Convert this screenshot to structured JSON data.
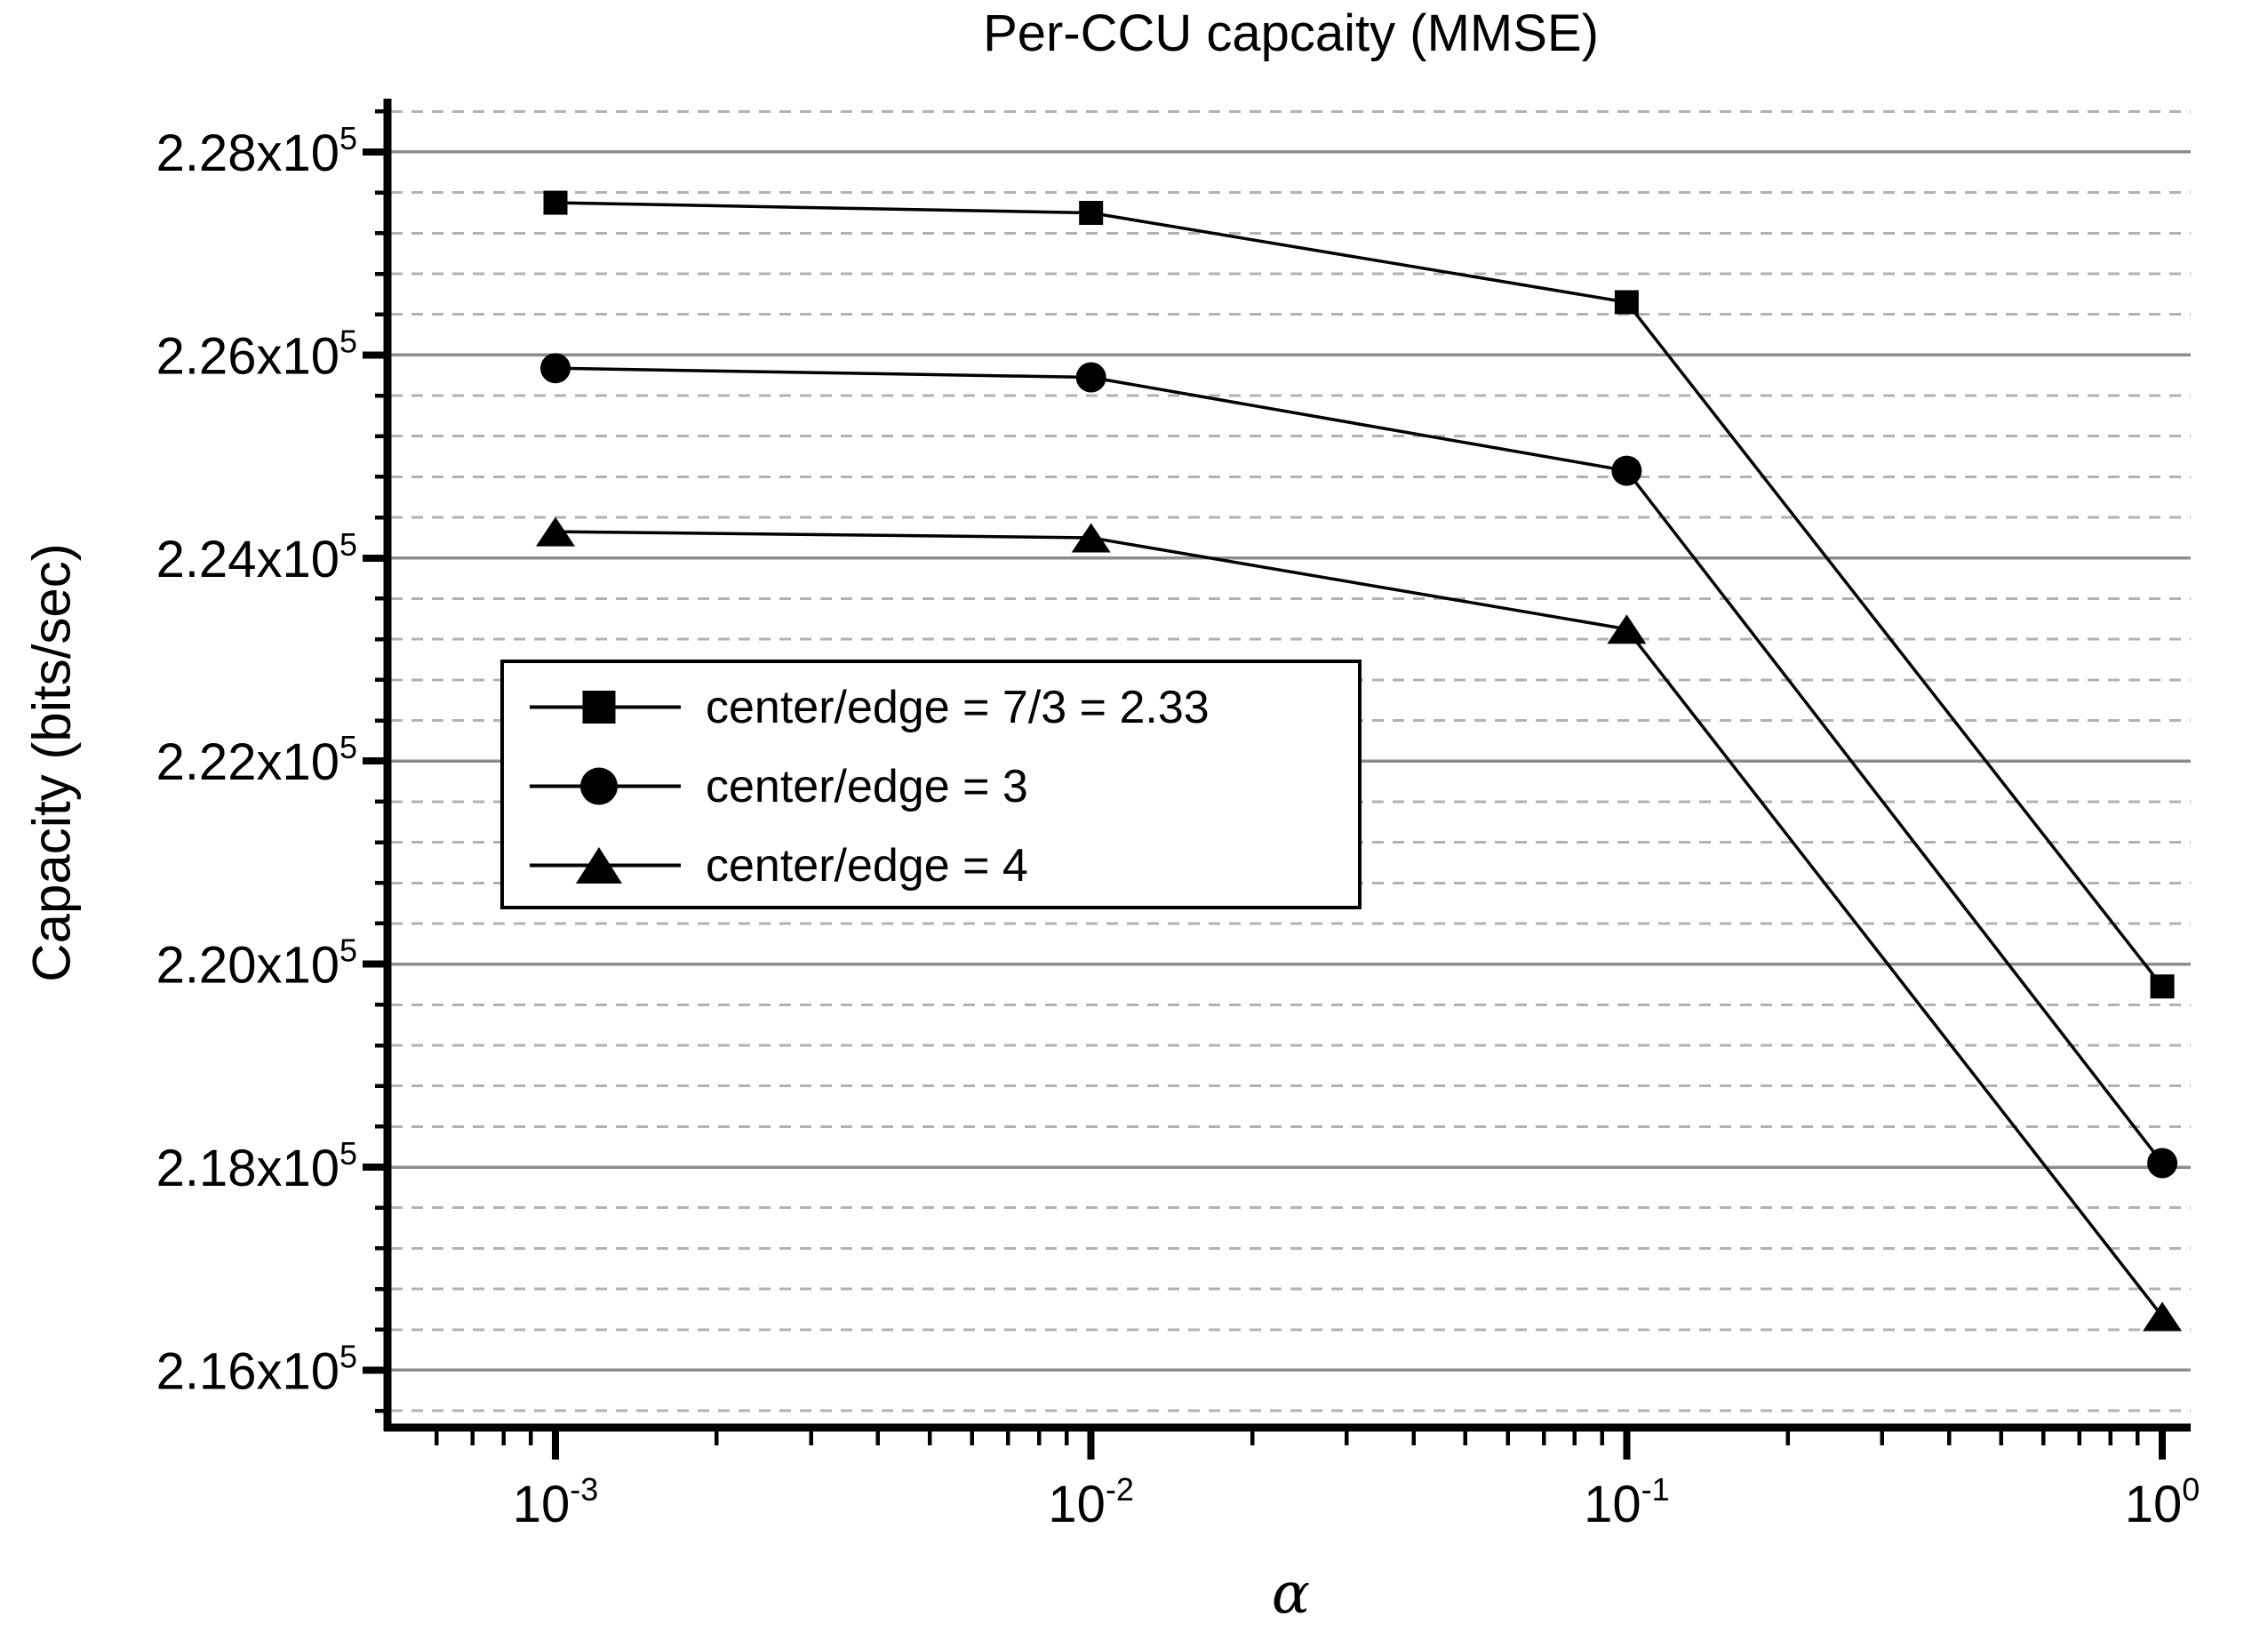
{
  "title": "Per-CCU capcaity (MMSE)",
  "axes": {
    "y_label": "Capacity (bits/sec)",
    "x_label": "α",
    "y_range": [
      215470,
      228490
    ],
    "x_log_range": [
      -3.307,
      0.053
    ],
    "y_minor_step": 400,
    "y_ticks": [
      {
        "value": 216000,
        "text": "2.16x10",
        "sup": "5"
      },
      {
        "value": 218000,
        "text": "2.18x10",
        "sup": "5"
      },
      {
        "value": 220000,
        "text": "2.20x10",
        "sup": "5"
      },
      {
        "value": 222000,
        "text": "2.22x10",
        "sup": "5"
      },
      {
        "value": 224000,
        "text": "2.24x10",
        "sup": "5"
      },
      {
        "value": 226000,
        "text": "2.26x10",
        "sup": "5"
      },
      {
        "value": 228000,
        "text": "2.28x10",
        "sup": "5"
      }
    ],
    "x_ticks": [
      {
        "value": 0.001,
        "text": "10",
        "sup": "-3"
      },
      {
        "value": 0.01,
        "text": "10",
        "sup": "-2"
      },
      {
        "value": 0.1,
        "text": "10",
        "sup": "-1"
      },
      {
        "value": 1,
        "text": "10",
        "sup": "0"
      }
    ]
  },
  "legend": {
    "entries": [
      {
        "marker": "square",
        "label": "center/edge = 7/3 = 2.33"
      },
      {
        "marker": "circle",
        "label": "center/edge = 3"
      },
      {
        "marker": "triangle",
        "label": "center/edge = 4"
      }
    ]
  },
  "chart_data": {
    "type": "line",
    "title": "Per-CCU capcaity (MMSE)",
    "xlabel": "α",
    "ylabel": "Capacity (bits/sec)",
    "x_scale": "log",
    "x": [
      0.001,
      0.01,
      0.1,
      1
    ],
    "series": [
      {
        "name": "center/edge = 7/3 = 2.33",
        "marker": "square",
        "values": [
          227500,
          227400,
          226520,
          219780
        ]
      },
      {
        "name": "center/edge = 3",
        "marker": "circle",
        "values": [
          225870,
          225780,
          224860,
          218040
        ]
      },
      {
        "name": "center/edge = 4",
        "marker": "triangle",
        "values": [
          224260,
          224200,
          223300,
          216530
        ]
      }
    ],
    "ylim": [
      215470,
      228490
    ],
    "xlim": [
      0.00049,
      1.13
    ],
    "grid": {
      "major": "solid",
      "minor": "dashed",
      "vertical": "off"
    },
    "legend_position": "upper-left-inside"
  },
  "colors": {
    "axis": "#000000",
    "series": "#000000",
    "grid_major": "#8c8c8c",
    "grid_minor": "#b2b2b2",
    "background": "#ffffff"
  }
}
